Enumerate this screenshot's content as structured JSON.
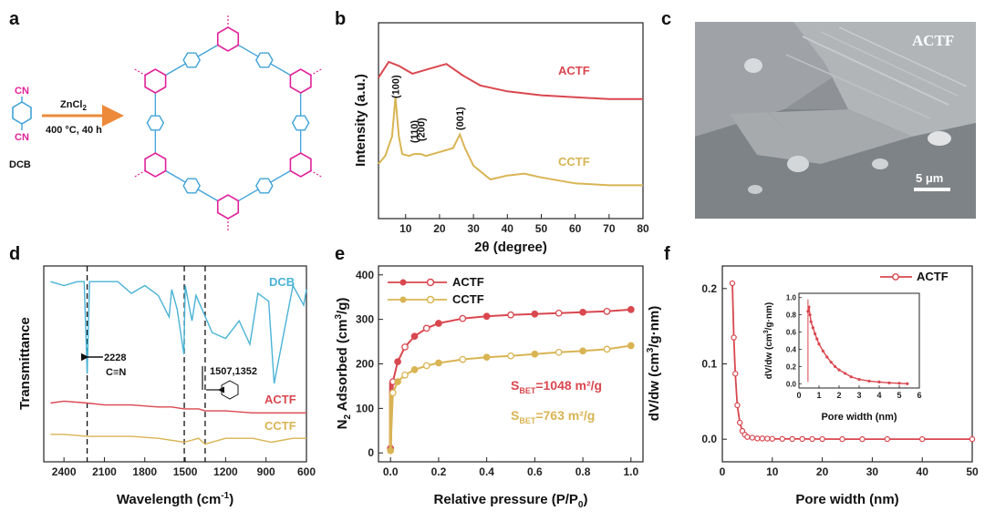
{
  "panel_labels": {
    "a": "a",
    "b": "b",
    "c": "c",
    "d": "d",
    "e": "e",
    "f": "f"
  },
  "colors": {
    "actf": "#d9474f",
    "cctf": "#d9b453",
    "dcb": "#49b3d6",
    "triazine": "#e0219a",
    "benzene": "#3fa2d8",
    "arrow": "#ec8a3a"
  },
  "panel_a": {
    "monomer_label": "DCB",
    "cn_top": "CN",
    "cn_bottom": "CN",
    "reagent": "ZnCl",
    "reagent_sub": "2",
    "conditions": "400 °C, 40 h"
  },
  "panel_c": {
    "sample_label": "ACTF",
    "scale_bar": "5 μm"
  },
  "panel_d": {
    "ylabel": "Transmittance",
    "xlabel": "Wavelength (cm",
    "xlabel_sup": "-1",
    "xlabel_close": ")",
    "traces": [
      "DCB",
      "ACTF",
      "CCTF"
    ],
    "annot_cn_value": "2228",
    "annot_cn_bond": "C≡N",
    "annot_triazine": "1507,1352"
  },
  "chart_data": [
    {
      "type": "line",
      "panel": "b",
      "title": "",
      "xlabel": "2θ (degree)",
      "ylabel": "Intensity (a.u.)",
      "xlim": [
        2,
        80
      ],
      "x_ticks": [
        "10",
        "20",
        "30",
        "40",
        "50",
        "60",
        "70",
        "80"
      ],
      "series": [
        {
          "name": "ACTF",
          "x": [
            2,
            5,
            8,
            12,
            16,
            22,
            27,
            32,
            40,
            50,
            60,
            70,
            80
          ],
          "values": [
            0.72,
            0.8,
            0.78,
            0.74,
            0.76,
            0.79,
            0.73,
            0.68,
            0.65,
            0.63,
            0.62,
            0.61,
            0.61
          ]
        },
        {
          "name": "CCTF",
          "x": [
            2,
            4,
            6,
            7,
            8,
            9,
            11,
            12.5,
            14.5,
            16,
            20,
            24,
            26,
            27.5,
            30,
            35,
            40,
            45,
            50,
            60,
            70,
            80
          ],
          "values": [
            0.28,
            0.32,
            0.42,
            0.62,
            0.42,
            0.33,
            0.32,
            0.33,
            0.33,
            0.32,
            0.34,
            0.36,
            0.43,
            0.36,
            0.27,
            0.2,
            0.22,
            0.23,
            0.21,
            0.18,
            0.17,
            0.17
          ]
        }
      ],
      "peak_labels": [
        {
          "x": 7,
          "label": "(100)"
        },
        {
          "x": 12.5,
          "label": "(110)"
        },
        {
          "x": 14.5,
          "label": "(200)"
        },
        {
          "x": 26,
          "label": "(001)"
        }
      ]
    },
    {
      "type": "line",
      "panel": "d",
      "title": "",
      "xlabel": "Wavelength (cm-1)",
      "ylabel": "Transmittance",
      "xlim": [
        2500,
        600
      ],
      "x_ticks": [
        "2400",
        "2100",
        "1800",
        "1500",
        "1200",
        "900",
        "600"
      ],
      "reference_lines": [
        2228,
        1507,
        1352
      ],
      "series": [
        {
          "name": "DCB",
          "x": [
            2500,
            2400,
            2300,
            2250,
            2228,
            2210,
            2000,
            1900,
            1800,
            1700,
            1620,
            1600,
            1560,
            1510,
            1500,
            1450,
            1420,
            1300,
            1200,
            1100,
            1020,
            960,
            880,
            840,
            700,
            620,
            600
          ],
          "values": [
            0.92,
            0.9,
            0.92,
            0.92,
            0.45,
            0.92,
            0.92,
            0.86,
            0.9,
            0.85,
            0.74,
            0.88,
            0.78,
            0.55,
            0.9,
            0.72,
            0.85,
            0.66,
            0.63,
            0.72,
            0.6,
            0.86,
            0.82,
            0.4,
            0.9,
            0.8,
            0.88
          ]
        },
        {
          "name": "ACTF",
          "x": [
            2500,
            2400,
            2228,
            2100,
            1900,
            1700,
            1600,
            1507,
            1400,
            1352,
            1200,
            1000,
            800,
            600
          ],
          "values": [
            0.3,
            0.31,
            0.3,
            0.29,
            0.29,
            0.28,
            0.28,
            0.27,
            0.27,
            0.26,
            0.26,
            0.25,
            0.25,
            0.25
          ]
        },
        {
          "name": "CCTF",
          "x": [
            2500,
            2400,
            2228,
            2050,
            1900,
            1700,
            1507,
            1400,
            1352,
            1200,
            1000,
            860,
            700,
            600
          ],
          "values": [
            0.14,
            0.14,
            0.13,
            0.13,
            0.13,
            0.12,
            0.1,
            0.12,
            0.09,
            0.12,
            0.12,
            0.1,
            0.12,
            0.12
          ]
        }
      ]
    },
    {
      "type": "scatter",
      "panel": "e",
      "title": "",
      "xlabel": "Relative pressure (P/P0)",
      "ylabel": "N2 Adsorbed (cm3/g)",
      "xlim": [
        0,
        1
      ],
      "ylim": [
        -20,
        420
      ],
      "x_ticks": [
        "0.0",
        "0.2",
        "0.4",
        "0.6",
        "0.8",
        "1.0"
      ],
      "y_ticks": [
        "0",
        "100",
        "200",
        "300",
        "400"
      ],
      "series": [
        {
          "name": "ACTF",
          "x": [
            0,
            0.01,
            0.03,
            0.06,
            0.1,
            0.15,
            0.2,
            0.3,
            0.4,
            0.5,
            0.6,
            0.7,
            0.8,
            0.9,
            1.0
          ],
          "values": [
            10,
            160,
            205,
            238,
            262,
            280,
            291,
            302,
            307,
            310,
            312,
            314,
            316,
            318,
            322
          ]
        },
        {
          "name": "CCTF",
          "x": [
            0,
            0.01,
            0.03,
            0.06,
            0.1,
            0.15,
            0.2,
            0.3,
            0.4,
            0.5,
            0.6,
            0.7,
            0.8,
            0.9,
            1.0
          ],
          "values": [
            5,
            135,
            160,
            175,
            187,
            196,
            202,
            210,
            215,
            218,
            222,
            226,
            229,
            233,
            241
          ]
        }
      ],
      "annotations": [
        {
          "label": "S",
          "sub": "BET",
          "value": "=1048 m²/g",
          "series": "ACTF"
        },
        {
          "label": "S",
          "sub": "BET",
          "value": "=763 m²/g",
          "series": "CCTF"
        }
      ]
    },
    {
      "type": "line",
      "panel": "f",
      "title": "",
      "xlabel": "Pore width (nm)",
      "ylabel": "dV/dw (cm3/g·nm)",
      "xlim": [
        0,
        50
      ],
      "ylim": [
        -0.03,
        0.23
      ],
      "x_ticks": [
        "0",
        "10",
        "20",
        "30",
        "40",
        "50"
      ],
      "y_ticks": [
        "0.0",
        "0.1",
        "0.2"
      ],
      "series": [
        {
          "name": "ACTF",
          "x": [
            2.0,
            2.3,
            2.6,
            3.0,
            3.5,
            4.0,
            4.5,
            5.0,
            6,
            7,
            8,
            9,
            10,
            12,
            14,
            16,
            18,
            20,
            24,
            28,
            33,
            40,
            50
          ],
          "values": [
            0.207,
            0.135,
            0.087,
            0.045,
            0.022,
            0.011,
            0.006,
            0.003,
            0.002,
            0.001,
            0.001,
            0.0008,
            0.0005,
            0.0004,
            0.0003,
            0.0003,
            0.0002,
            0.0002,
            0.0001,
            0.0001,
            0.0001,
            0.0001,
            0.0001
          ]
        }
      ],
      "inset": {
        "xlabel": "Pore width (nm)",
        "ylabel": "dV/dw (cm3/g·nm)",
        "xlim": [
          0,
          6
        ],
        "ylim": [
          0,
          1
        ],
        "x_ticks": [
          "0",
          "1",
          "2",
          "3",
          "4",
          "5",
          "6"
        ],
        "y_ticks": [
          "0.0",
          "0.2",
          "0.4",
          "0.6",
          "0.8",
          "1.0"
        ],
        "x": [
          0.45,
          0.5,
          0.55,
          0.6,
          0.7,
          0.8,
          0.9,
          1.0,
          1.2,
          1.4,
          1.6,
          1.8,
          2.0,
          2.3,
          2.6,
          3.0,
          3.5,
          4.0,
          4.5,
          5.0,
          5.4
        ],
        "values": [
          0.84,
          0.89,
          0.8,
          0.72,
          0.65,
          0.58,
          0.52,
          0.46,
          0.38,
          0.31,
          0.25,
          0.2,
          0.16,
          0.12,
          0.08,
          0.05,
          0.03,
          0.02,
          0.01,
          0.005,
          0.0
        ]
      }
    }
  ]
}
